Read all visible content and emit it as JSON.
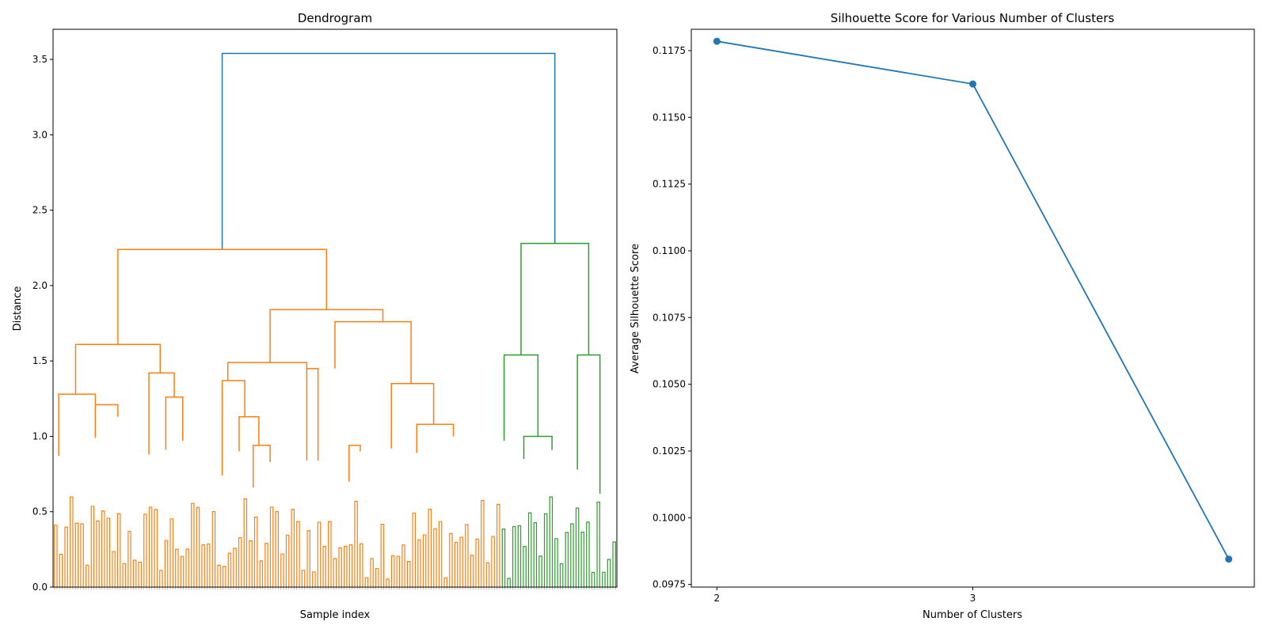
{
  "chart_data": [
    {
      "type": "dendrogram",
      "title": "Dendrogram",
      "xlabel": "Sample index",
      "ylabel": "Distance",
      "ylim": [
        0,
        3.7
      ],
      "yticks": [
        0.0,
        0.5,
        1.0,
        1.5,
        2.0,
        2.5,
        3.0,
        3.5
      ],
      "ytick_labels": [
        "0.0",
        "0.5",
        "1.0",
        "1.5",
        "2.0",
        "2.5",
        "3.0",
        "3.5"
      ],
      "grid": false,
      "colors": {
        "top_link": "#1f77b4",
        "cluster_1": "#ff7f0e",
        "cluster_2": "#2ca02c"
      },
      "leaf_count": 214,
      "orange_leaf_count": 169,
      "merges": [
        {
          "color": "#1f77b4",
          "left_x": 0.3,
          "right_x": 0.89,
          "height": 3.54,
          "left_child_height": 2.24,
          "right_child_height": 2.28
        },
        {
          "color": "#ff7f0e",
          "left_x": 0.115,
          "right_x": 0.485,
          "height": 2.24,
          "left_child_height": 1.61,
          "right_child_height": 1.84
        },
        {
          "color": "#2ca02c",
          "left_x": 0.83,
          "right_x": 0.95,
          "height": 2.28,
          "left_child_height": 1.54,
          "right_child_height": 1.54
        },
        {
          "color": "#ff7f0e",
          "left_x": 0.385,
          "right_x": 0.585,
          "height": 1.84,
          "left_child_height": 1.49,
          "right_child_height": 1.76
        },
        {
          "color": "#ff7f0e",
          "left_x": 0.04,
          "right_x": 0.19,
          "height": 1.61,
          "left_child_height": 1.28,
          "right_child_height": 1.42
        },
        {
          "color": "#ff7f0e",
          "left_x": 0.5,
          "right_x": 0.635,
          "height": 1.76,
          "left_child_height": 1.45,
          "right_child_height": 1.35
        },
        {
          "color": "#ff7f0e",
          "left_x": 0.31,
          "right_x": 0.45,
          "height": 1.49,
          "left_child_height": 1.37,
          "right_child_height": 1.45
        },
        {
          "color": "#2ca02c",
          "left_x": 0.8,
          "right_x": 0.86,
          "height": 1.54,
          "left_child_height": 0.97,
          "right_child_height": 1.0
        },
        {
          "color": "#2ca02c",
          "left_x": 0.93,
          "right_x": 0.97,
          "height": 1.54,
          "left_child_height": 0.78,
          "right_child_height": 0.62
        },
        {
          "color": "#ff7f0e",
          "left_x": 0.01,
          "right_x": 0.075,
          "height": 1.28,
          "left_child_height": 0.87,
          "right_child_height": 1.21
        },
        {
          "color": "#ff7f0e",
          "left_x": 0.17,
          "right_x": 0.215,
          "height": 1.42,
          "left_child_height": 0.88,
          "right_child_height": 1.26
        },
        {
          "color": "#ff7f0e",
          "left_x": 0.6,
          "right_x": 0.675,
          "height": 1.35,
          "left_child_height": 0.92,
          "right_child_height": 1.08
        },
        {
          "color": "#ff7f0e",
          "left_x": 0.3,
          "right_x": 0.34,
          "height": 1.37,
          "left_child_height": 0.74,
          "right_child_height": 1.13
        },
        {
          "color": "#ff7f0e",
          "left_x": 0.645,
          "right_x": 0.71,
          "height": 1.08,
          "left_child_height": 0.89,
          "right_child_height": 1.0
        },
        {
          "color": "#ff7f0e",
          "left_x": 0.075,
          "right_x": 0.115,
          "height": 1.21,
          "left_child_height": 0.99,
          "right_child_height": 1.13
        },
        {
          "color": "#ff7f0e",
          "left_x": 0.2,
          "right_x": 0.23,
          "height": 1.26,
          "left_child_height": 0.91,
          "right_child_height": 0.97
        },
        {
          "color": "#ff7f0e",
          "left_x": 0.33,
          "right_x": 0.365,
          "height": 1.13,
          "left_child_height": 0.9,
          "right_child_height": 0.94
        },
        {
          "color": "#ff7f0e",
          "left_x": 0.525,
          "right_x": 0.545,
          "height": 0.94,
          "left_child_height": 0.7,
          "right_child_height": 0.9
        },
        {
          "color": "#ff7f0e",
          "left_x": 0.355,
          "right_x": 0.385,
          "height": 0.94,
          "left_child_height": 0.66,
          "right_child_height": 0.83
        },
        {
          "color": "#ff7f0e",
          "left_x": 0.45,
          "right_x": 0.47,
          "height": 1.45,
          "left_child_height": 0.84,
          "right_child_height": 0.84
        },
        {
          "color": "#2ca02c",
          "left_x": 0.835,
          "right_x": 0.885,
          "height": 1.0,
          "left_child_height": 0.85,
          "right_child_height": 0.91
        }
      ]
    },
    {
      "type": "line",
      "title": "Silhouette Score for Various Number of Clusters",
      "xlabel": "Number of Clusters",
      "ylabel": "Average Silhouette Score",
      "x": [
        2,
        3,
        4
      ],
      "values": [
        0.11785,
        0.11625,
        0.09845
      ],
      "xlim": [
        1.9,
        4.1
      ],
      "ylim": [
        0.0974,
        0.1183
      ],
      "xticks": [
        2,
        3
      ],
      "xtick_labels": [
        "2",
        "3"
      ],
      "yticks": [
        0.0975,
        0.1,
        0.1025,
        0.105,
        0.1075,
        0.11,
        0.1125,
        0.115,
        0.1175
      ],
      "ytick_labels": [
        "0.0975",
        "0.1000",
        "0.1025",
        "0.1050",
        "0.1075",
        "0.1100",
        "0.1125",
        "0.1150",
        "0.1175"
      ],
      "color": "#1f77b4",
      "marker": "circle",
      "grid": false
    }
  ]
}
